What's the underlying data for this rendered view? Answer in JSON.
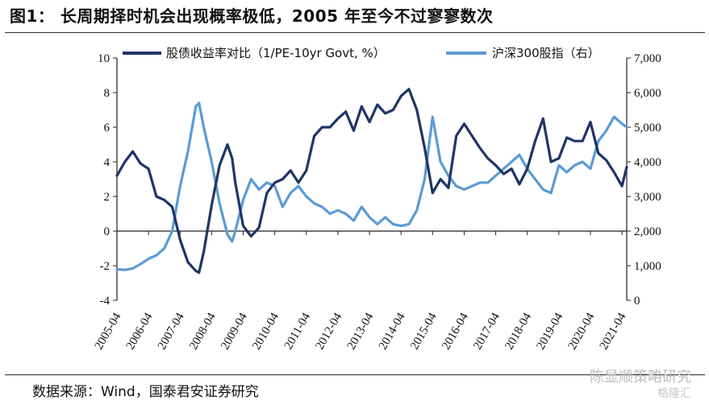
{
  "title": "图1：  长周期择时机会出现概率极低，2005 年至今不过寥寥数次",
  "source": "数据来源：Wind，国泰君安证券研究",
  "watermark": "陈显顺策略研究",
  "watermark_sub": "格隆汇",
  "colors": {
    "series1": "#1f3566",
    "series2": "#5b9bd5",
    "axis": "#222222"
  },
  "chart_data": {
    "type": "line",
    "title": "",
    "xlabel": "",
    "ylabel": "",
    "x_ticks": [
      "2005-04",
      "2006-04",
      "2007-04",
      "2008-04",
      "2009-04",
      "2010-04",
      "2011-04",
      "2012-04",
      "2013-04",
      "2014-04",
      "2015-04",
      "2016-04",
      "2017-04",
      "2018-04",
      "2019-04",
      "2020-04",
      "2021-04"
    ],
    "ylim_left": [
      -4,
      10
    ],
    "y_ticks_left": [
      "-4",
      "-2",
      "0",
      "2",
      "4",
      "6",
      "8",
      "10"
    ],
    "ylim_right": [
      0,
      7000
    ],
    "y_ticks_right": [
      "0",
      "1,000",
      "2,000",
      "3,000",
      "4,000",
      "5,000",
      "6,000",
      "7,000"
    ],
    "grid": false,
    "legend_position": "top",
    "series": [
      {
        "name": "股债收益率对比（1/PE-10yr Govt, %）",
        "axis": "left",
        "x": [
          2005.25,
          2005.5,
          2005.75,
          2006.0,
          2006.25,
          2006.5,
          2006.75,
          2007.0,
          2007.25,
          2007.5,
          2007.75,
          2007.85,
          2008.0,
          2008.25,
          2008.5,
          2008.75,
          2008.9,
          2009.0,
          2009.25,
          2009.5,
          2009.75,
          2010.0,
          2010.25,
          2010.5,
          2010.75,
          2011.0,
          2011.25,
          2011.5,
          2011.75,
          2012.0,
          2012.25,
          2012.5,
          2012.75,
          2013.0,
          2013.25,
          2013.5,
          2013.75,
          2014.0,
          2014.25,
          2014.5,
          2014.75,
          2015.0,
          2015.25,
          2015.5,
          2015.75,
          2016.0,
          2016.25,
          2016.5,
          2016.75,
          2017.0,
          2017.25,
          2017.5,
          2017.75,
          2018.0,
          2018.25,
          2018.5,
          2018.75,
          2019.0,
          2019.25,
          2019.5,
          2019.75,
          2020.0,
          2020.25,
          2020.5,
          2020.75,
          2021.0,
          2021.25,
          2021.4
        ],
        "values": [
          3.2,
          4.0,
          4.6,
          3.9,
          3.6,
          2.0,
          1.8,
          1.4,
          -0.5,
          -1.8,
          -2.3,
          -2.4,
          -1.2,
          1.5,
          3.8,
          5.0,
          4.2,
          2.8,
          0.3,
          -0.3,
          0.2,
          2.2,
          2.8,
          3.0,
          3.5,
          2.8,
          3.5,
          5.5,
          6.0,
          6.0,
          6.5,
          6.9,
          5.8,
          7.2,
          6.3,
          7.3,
          6.8,
          7.0,
          7.8,
          8.2,
          7.0,
          4.8,
          2.2,
          3.0,
          2.5,
          5.5,
          6.2,
          5.5,
          4.8,
          4.2,
          3.8,
          3.3,
          3.6,
          2.7,
          3.6,
          5.2,
          6.5,
          4.0,
          4.2,
          5.4,
          5.2,
          5.2,
          6.3,
          4.5,
          4.1,
          3.4,
          2.6,
          3.7
        ]
      },
      {
        "name": "沪深300股指（右）",
        "axis": "right",
        "x": [
          2005.25,
          2005.5,
          2005.75,
          2006.0,
          2006.25,
          2006.5,
          2006.75,
          2007.0,
          2007.25,
          2007.5,
          2007.75,
          2007.85,
          2008.0,
          2008.25,
          2008.5,
          2008.75,
          2008.9,
          2009.0,
          2009.25,
          2009.5,
          2009.75,
          2010.0,
          2010.25,
          2010.5,
          2010.75,
          2011.0,
          2011.25,
          2011.5,
          2011.75,
          2012.0,
          2012.25,
          2012.5,
          2012.75,
          2013.0,
          2013.25,
          2013.5,
          2013.75,
          2014.0,
          2014.25,
          2014.5,
          2014.75,
          2015.0,
          2015.25,
          2015.5,
          2015.75,
          2016.0,
          2016.25,
          2016.5,
          2016.75,
          2017.0,
          2017.25,
          2017.5,
          2017.75,
          2018.0,
          2018.25,
          2018.5,
          2018.75,
          2019.0,
          2019.25,
          2019.5,
          2019.75,
          2020.0,
          2020.25,
          2020.5,
          2020.75,
          2021.0,
          2021.25,
          2021.4
        ],
        "values": [
          900,
          880,
          920,
          1050,
          1200,
          1300,
          1500,
          2000,
          3300,
          4300,
          5600,
          5700,
          5000,
          4000,
          2800,
          1900,
          1700,
          2000,
          2900,
          3500,
          3200,
          3400,
          3300,
          2700,
          3100,
          3300,
          3000,
          2800,
          2700,
          2500,
          2600,
          2500,
          2300,
          2700,
          2400,
          2200,
          2400,
          2200,
          2150,
          2200,
          2600,
          3500,
          5300,
          4000,
          3600,
          3300,
          3200,
          3300,
          3400,
          3400,
          3600,
          3800,
          4000,
          4200,
          3800,
          3500,
          3200,
          3100,
          3900,
          3700,
          3900,
          4000,
          3800,
          4600,
          4900,
          5300,
          5100,
          5000
        ]
      }
    ]
  }
}
